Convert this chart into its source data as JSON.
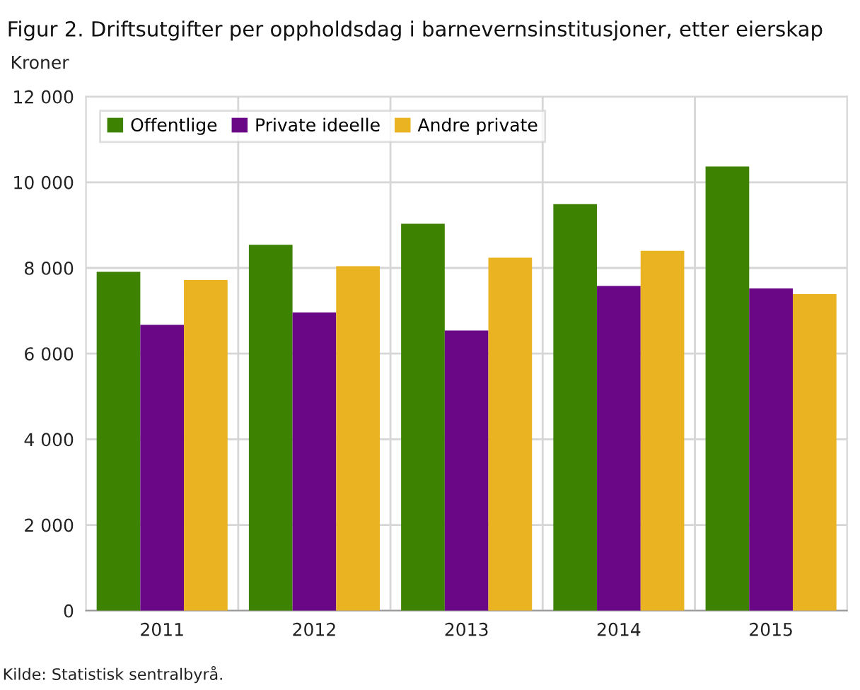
{
  "chart_data": {
    "type": "bar",
    "title": "Figur 2. Driftsutgifter per oppholdsdag i barnevernsinstitusjoner, etter eierskap",
    "ylabel": "Kroner",
    "categories": [
      "2011",
      "2012",
      "2013",
      "2014",
      "2015"
    ],
    "series": [
      {
        "name": "Offentlige",
        "color": "#3d8200",
        "values": [
          7910,
          8540,
          9030,
          9490,
          10370
        ]
      },
      {
        "name": "Private ideelle",
        "color": "#6a0787",
        "values": [
          6670,
          6960,
          6540,
          7580,
          7520
        ]
      },
      {
        "name": "Andre private",
        "color": "#eab321",
        "values": [
          7720,
          8040,
          8240,
          8400,
          7390
        ]
      }
    ],
    "ylim": [
      0,
      12000
    ],
    "yticks": [
      0,
      {
        "value": 2000,
        "label": "2 000"
      },
      {
        "value": 4000,
        "label": "4 000"
      },
      {
        "value": 6000,
        "label": "6 000"
      },
      {
        "value": 8000,
        "label": "8 000"
      },
      {
        "value": 10000,
        "label": "10 000"
      },
      {
        "value": 12000,
        "label": "12 000"
      }
    ],
    "grid": true,
    "legend": "top left",
    "annotations": [
      "Kilde: Statistisk sentralbyrå."
    ]
  }
}
